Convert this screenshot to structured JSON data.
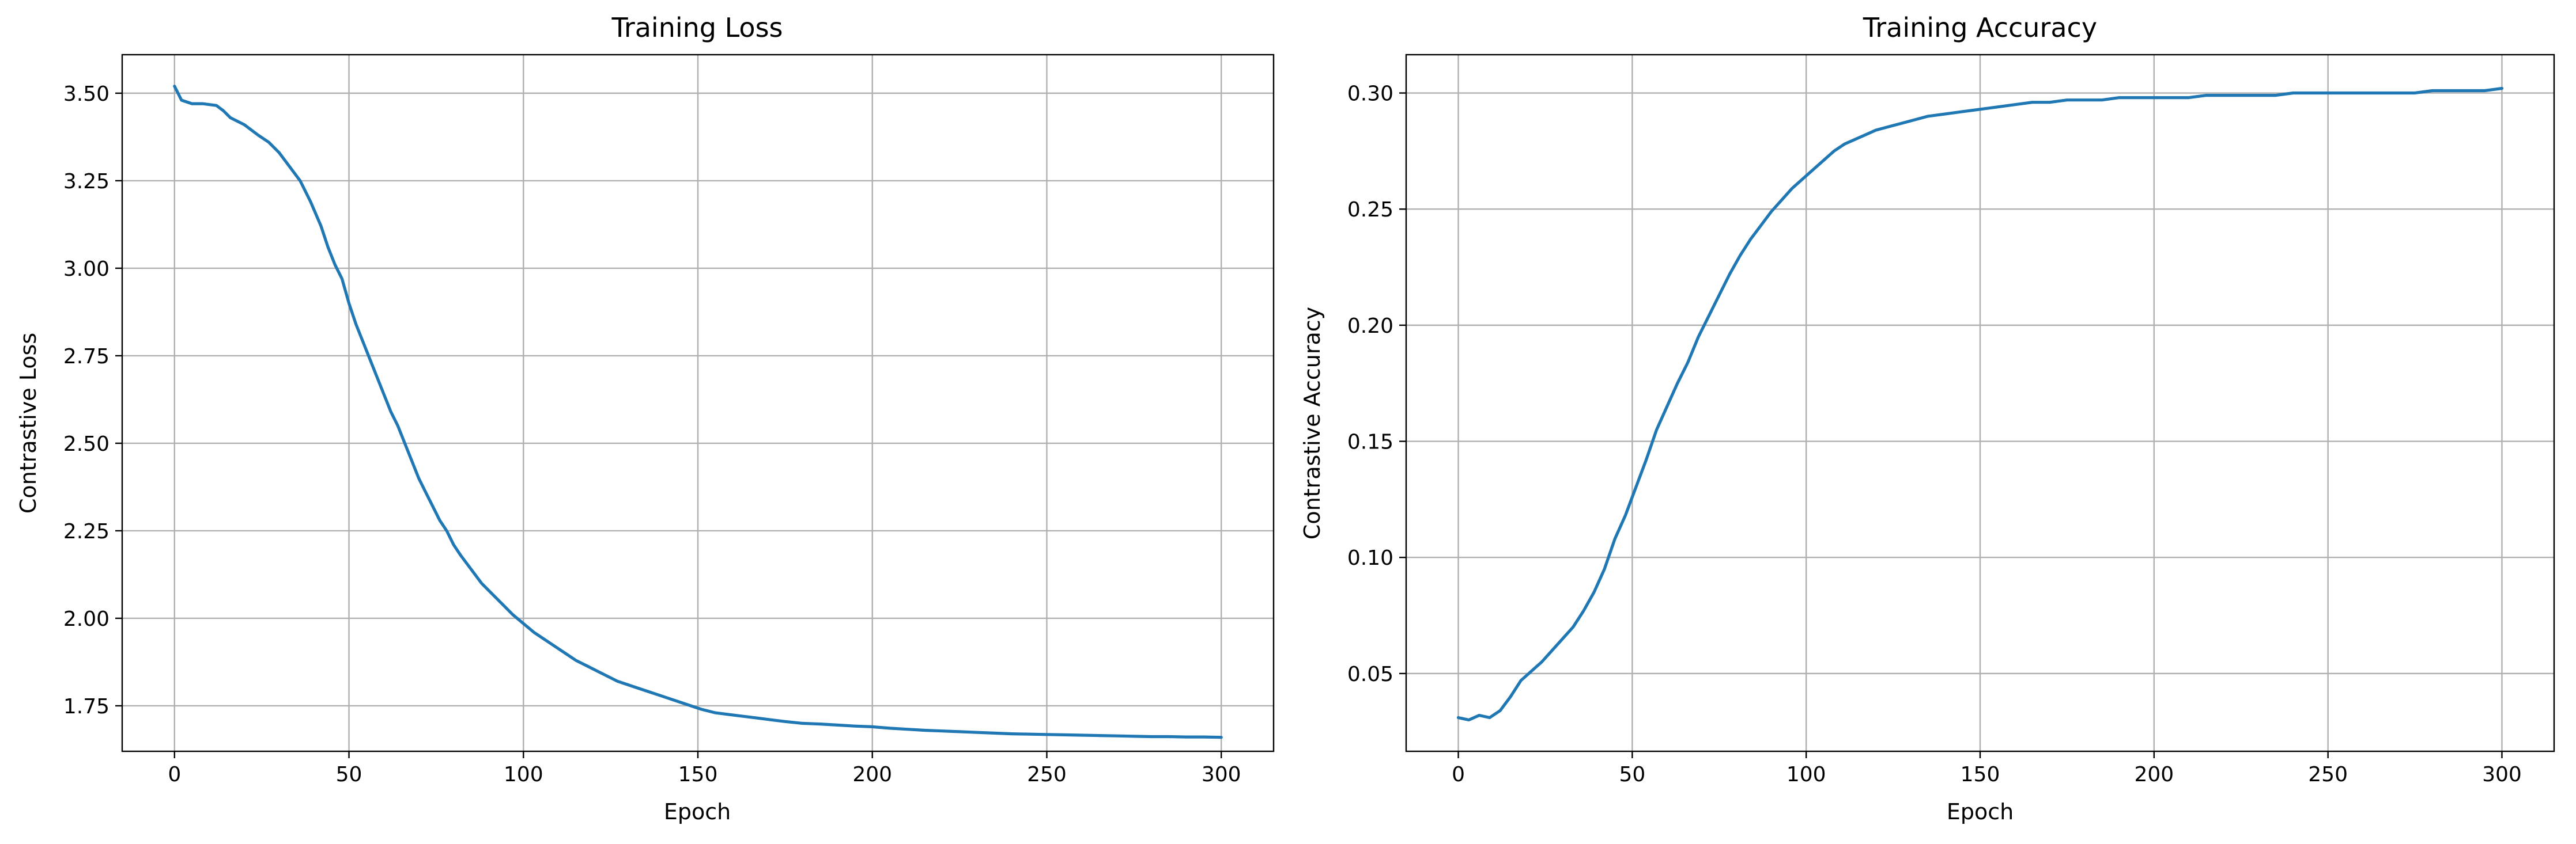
{
  "chart_data": [
    {
      "type": "line",
      "title": "Training Loss",
      "xlabel": "Epoch",
      "ylabel": "Contrastive Loss",
      "xlim": [
        -15,
        315
      ],
      "ylim": [
        1.62,
        3.61
      ],
      "xticks": [
        0,
        50,
        100,
        150,
        200,
        250,
        300
      ],
      "yticks": [
        1.75,
        2.0,
        2.25,
        2.5,
        2.75,
        3.0,
        3.25,
        3.5
      ],
      "ytick_decimals": 2,
      "grid": true,
      "color": "#1f77b4",
      "series": [
        {
          "points": [
            [
              0,
              3.52
            ],
            [
              2,
              3.48
            ],
            [
              5,
              3.47
            ],
            [
              8,
              3.47
            ],
            [
              12,
              3.465
            ],
            [
              14,
              3.45
            ],
            [
              16,
              3.43
            ],
            [
              20,
              3.41
            ],
            [
              24,
              3.38
            ],
            [
              27,
              3.36
            ],
            [
              30,
              3.33
            ],
            [
              33,
              3.29
            ],
            [
              36,
              3.25
            ],
            [
              39,
              3.19
            ],
            [
              42,
              3.12
            ],
            [
              44,
              3.06
            ],
            [
              46,
              3.01
            ],
            [
              48,
              2.97
            ],
            [
              50,
              2.9
            ],
            [
              52,
              2.84
            ],
            [
              54,
              2.79
            ],
            [
              56,
              2.74
            ],
            [
              58,
              2.69
            ],
            [
              60,
              2.64
            ],
            [
              62,
              2.59
            ],
            [
              64,
              2.55
            ],
            [
              66,
              2.5
            ],
            [
              68,
              2.45
            ],
            [
              70,
              2.4
            ],
            [
              72,
              2.36
            ],
            [
              74,
              2.32
            ],
            [
              76,
              2.28
            ],
            [
              78,
              2.25
            ],
            [
              80,
              2.21
            ],
            [
              82,
              2.18
            ],
            [
              85,
              2.14
            ],
            [
              88,
              2.1
            ],
            [
              91,
              2.07
            ],
            [
              94,
              2.04
            ],
            [
              97,
              2.01
            ],
            [
              100,
              1.985
            ],
            [
              103,
              1.96
            ],
            [
              106,
              1.94
            ],
            [
              109,
              1.92
            ],
            [
              112,
              1.9
            ],
            [
              115,
              1.88
            ],
            [
              118,
              1.865
            ],
            [
              121,
              1.85
            ],
            [
              124,
              1.835
            ],
            [
              127,
              1.82
            ],
            [
              130,
              1.81
            ],
            [
              133,
              1.8
            ],
            [
              136,
              1.79
            ],
            [
              139,
              1.78
            ],
            [
              142,
              1.77
            ],
            [
              145,
              1.76
            ],
            [
              148,
              1.75
            ],
            [
              151,
              1.74
            ],
            [
              155,
              1.73
            ],
            [
              159,
              1.725
            ],
            [
              163,
              1.72
            ],
            [
              167,
              1.715
            ],
            [
              171,
              1.71
            ],
            [
              175,
              1.705
            ],
            [
              180,
              1.7
            ],
            [
              185,
              1.698
            ],
            [
              190,
              1.695
            ],
            [
              195,
              1.692
            ],
            [
              200,
              1.69
            ],
            [
              205,
              1.686
            ],
            [
              210,
              1.683
            ],
            [
              215,
              1.68
            ],
            [
              220,
              1.678
            ],
            [
              225,
              1.676
            ],
            [
              230,
              1.674
            ],
            [
              235,
              1.672
            ],
            [
              240,
              1.67
            ],
            [
              245,
              1.669
            ],
            [
              250,
              1.668
            ],
            [
              255,
              1.667
            ],
            [
              260,
              1.666
            ],
            [
              265,
              1.665
            ],
            [
              270,
              1.664
            ],
            [
              275,
              1.663
            ],
            [
              280,
              1.662
            ],
            [
              285,
              1.662
            ],
            [
              290,
              1.661
            ],
            [
              295,
              1.661
            ],
            [
              300,
              1.66
            ]
          ]
        }
      ]
    },
    {
      "type": "line",
      "title": "Training Accuracy",
      "xlabel": "Epoch",
      "ylabel": "Contrastive Accuracy",
      "xlim": [
        -15,
        315
      ],
      "ylim": [
        0.0165,
        0.3165
      ],
      "xticks": [
        0,
        50,
        100,
        150,
        200,
        250,
        300
      ],
      "yticks": [
        0.05,
        0.1,
        0.15,
        0.2,
        0.25,
        0.3
      ],
      "ytick_decimals": 2,
      "grid": true,
      "color": "#1f77b4",
      "series": [
        {
          "points": [
            [
              0,
              0.031
            ],
            [
              3,
              0.03
            ],
            [
              6,
              0.032
            ],
            [
              9,
              0.031
            ],
            [
              12,
              0.034
            ],
            [
              15,
              0.04
            ],
            [
              18,
              0.047
            ],
            [
              21,
              0.051
            ],
            [
              24,
              0.055
            ],
            [
              27,
              0.06
            ],
            [
              30,
              0.065
            ],
            [
              33,
              0.07
            ],
            [
              36,
              0.077
            ],
            [
              39,
              0.085
            ],
            [
              42,
              0.095
            ],
            [
              45,
              0.108
            ],
            [
              48,
              0.118
            ],
            [
              51,
              0.13
            ],
            [
              54,
              0.142
            ],
            [
              57,
              0.155
            ],
            [
              60,
              0.165
            ],
            [
              63,
              0.175
            ],
            [
              66,
              0.184
            ],
            [
              69,
              0.195
            ],
            [
              72,
              0.204
            ],
            [
              75,
              0.213
            ],
            [
              78,
              0.222
            ],
            [
              81,
              0.23
            ],
            [
              84,
              0.237
            ],
            [
              87,
              0.243
            ],
            [
              90,
              0.249
            ],
            [
              93,
              0.254
            ],
            [
              96,
              0.259
            ],
            [
              99,
              0.263
            ],
            [
              102,
              0.267
            ],
            [
              105,
              0.271
            ],
            [
              108,
              0.275
            ],
            [
              111,
              0.278
            ],
            [
              114,
              0.28
            ],
            [
              117,
              0.282
            ],
            [
              120,
              0.284
            ],
            [
              125,
              0.286
            ],
            [
              130,
              0.288
            ],
            [
              135,
              0.29
            ],
            [
              140,
              0.291
            ],
            [
              145,
              0.292
            ],
            [
              150,
              0.293
            ],
            [
              155,
              0.294
            ],
            [
              160,
              0.295
            ],
            [
              165,
              0.296
            ],
            [
              170,
              0.296
            ],
            [
              175,
              0.297
            ],
            [
              180,
              0.297
            ],
            [
              185,
              0.297
            ],
            [
              190,
              0.298
            ],
            [
              195,
              0.298
            ],
            [
              200,
              0.298
            ],
            [
              205,
              0.298
            ],
            [
              210,
              0.298
            ],
            [
              215,
              0.299
            ],
            [
              220,
              0.299
            ],
            [
              225,
              0.299
            ],
            [
              230,
              0.299
            ],
            [
              235,
              0.299
            ],
            [
              240,
              0.3
            ],
            [
              245,
              0.3
            ],
            [
              250,
              0.3
            ],
            [
              255,
              0.3
            ],
            [
              260,
              0.3
            ],
            [
              265,
              0.3
            ],
            [
              270,
              0.3
            ],
            [
              275,
              0.3
            ],
            [
              280,
              0.301
            ],
            [
              285,
              0.301
            ],
            [
              290,
              0.301
            ],
            [
              295,
              0.301
            ],
            [
              300,
              0.302
            ]
          ]
        }
      ]
    }
  ]
}
